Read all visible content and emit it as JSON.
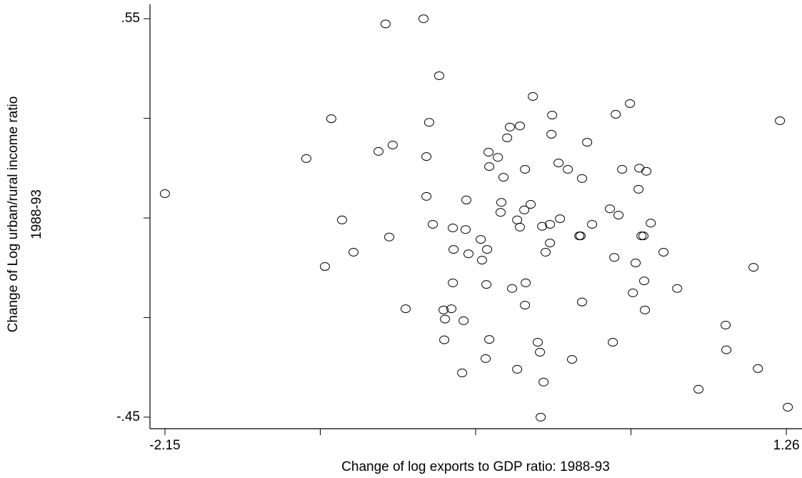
{
  "chart_data": {
    "type": "scatter",
    "xlabel": "Change of log exports to GDP ratio: 1988-93",
    "ylabel": [
      "Change of Log urban/rural income ratio",
      "1988-93"
    ],
    "xlim": [
      -2.232,
      1.346
    ],
    "ylim": [
      -0.479,
      0.597
    ],
    "xticks": [
      -2.15,
      1.26
    ],
    "xminor_ticks": [
      -1.2975,
      -0.445,
      0.4075
    ],
    "yticks": [
      {
        "value": 0.55,
        "label": ".55"
      },
      {
        "value": -0.45,
        "label": "-.45"
      }
    ],
    "yminor_ticks": [
      0.3,
      0.05,
      -0.2
    ],
    "color": "#000000",
    "x": [
      -2.15,
      -1.374,
      -1.237,
      -1.272,
      -1.178,
      -1.115,
      -0.978,
      -0.939,
      -0.919,
      -0.9,
      -0.829,
      -0.731,
      -0.715,
      -0.715,
      -0.7,
      -0.68,
      -0.645,
      -0.621,
      -0.617,
      -0.613,
      -0.578,
      -0.57,
      -0.566,
      -0.57,
      -0.519,
      -0.511,
      -0.5,
      -0.496,
      -0.484,
      -0.417,
      -0.41,
      -0.39,
      -0.386,
      -0.382,
      -0.374,
      -0.37,
      -0.37,
      -0.323,
      -0.308,
      -0.304,
      -0.292,
      -0.272,
      -0.257,
      -0.245,
      -0.217,
      -0.217,
      -0.202,
      -0.202,
      -0.178,
      -0.174,
      -0.174,
      -0.17,
      -0.143,
      -0.131,
      -0.104,
      -0.092,
      -0.088,
      -0.08,
      -0.072,
      -0.061,
      -0.037,
      -0.037,
      -0.029,
      -0.025,
      0.01,
      0.018,
      0.061,
      0.084,
      0.124,
      0.131,
      0.139,
      0.139,
      0.167,
      0.194,
      0.292,
      0.308,
      0.316,
      0.324,
      0.339,
      0.359,
      0.402,
      0.418,
      0.433,
      0.449,
      0.453,
      0.465,
      0.476,
      0.48,
      0.484,
      0.492,
      0.516,
      0.586,
      0.661,
      0.778,
      0.927,
      0.931,
      1.08,
      1.104,
      1.225,
      1.268
    ],
    "values": [
      0.111,
      0.199,
      0.299,
      -0.072,
      0.045,
      -0.036,
      0.217,
      0.537,
      0.002,
      0.233,
      -0.178,
      0.55,
      0.204,
      0.104,
      0.29,
      0.034,
      0.407,
      -0.181,
      -0.256,
      -0.204,
      -0.178,
      0.025,
      -0.029,
      -0.113,
      -0.339,
      -0.208,
      0.021,
      0.095,
      -0.04,
      -0.004,
      -0.056,
      -0.303,
      -0.117,
      -0.029,
      0.215,
      0.179,
      -0.255,
      0.202,
      0.064,
      0.089,
      0.152,
      0.251,
      0.278,
      -0.127,
      -0.33,
      0.045,
      0.281,
      0.027,
      0.07,
      0.172,
      -0.169,
      -0.113,
      0.084,
      0.355,
      -0.262,
      -0.287,
      -0.45,
      0.029,
      -0.362,
      -0.036,
      -0.013,
      0.034,
      0.26,
      0.308,
      0.188,
      0.048,
      0.172,
      -0.305,
      0.005,
      0.005,
      -0.161,
      0.149,
      0.24,
      0.034,
      0.073,
      -0.262,
      -0.049,
      0.31,
      0.057,
      0.172,
      0.337,
      -0.138,
      -0.063,
      0.122,
      0.175,
      0.005,
      0.005,
      -0.108,
      -0.181,
      0.167,
      0.037,
      -0.036,
      -0.127,
      -0.38,
      -0.219,
      -0.281,
      -0.074,
      -0.328,
      0.294,
      -0.425
    ]
  }
}
